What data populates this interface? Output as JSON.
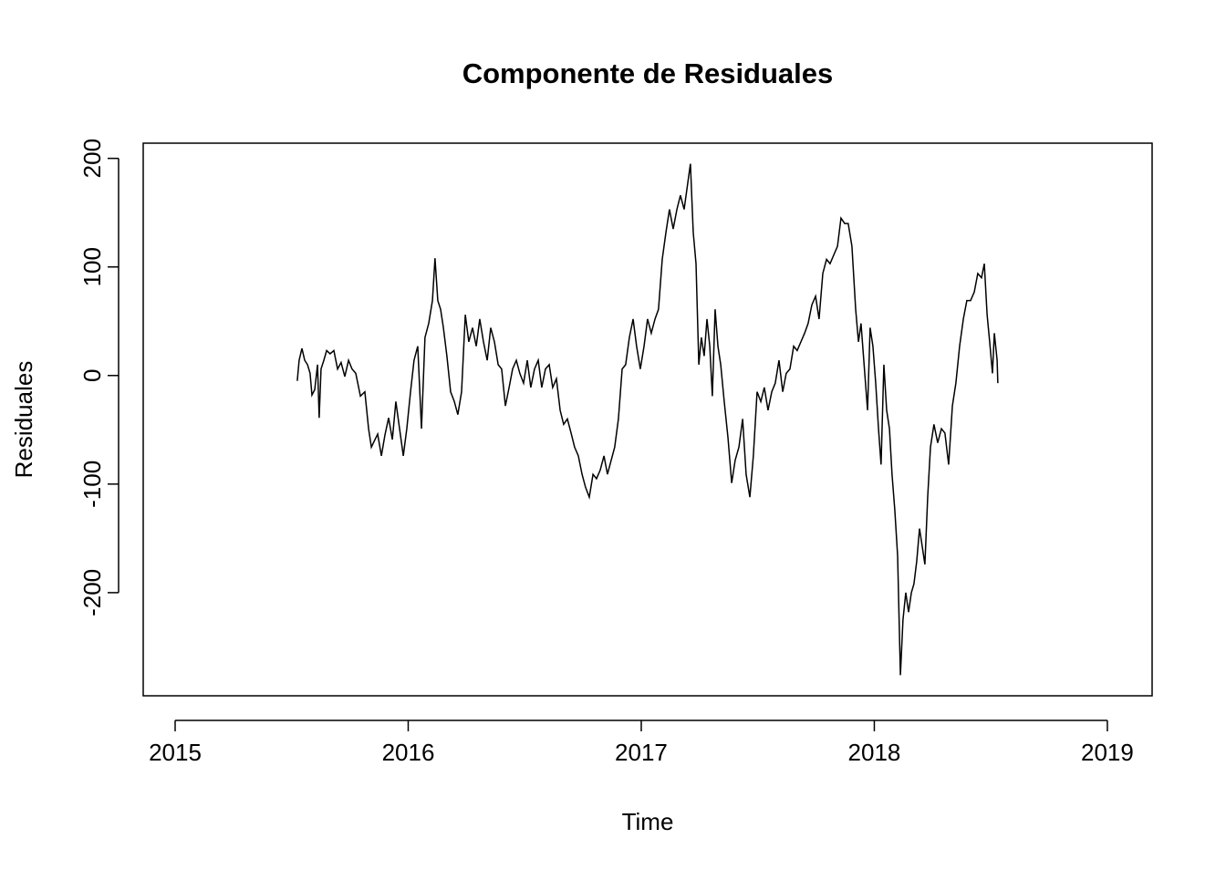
{
  "chart_data": {
    "type": "line",
    "title": "Componente de Residuales",
    "x_label": "Time",
    "y_label": "Residuales",
    "x": [
      2015.524,
      2015.532,
      2015.544,
      2015.556,
      2015.568,
      2015.579,
      2015.587,
      2015.599,
      2015.611,
      2015.618,
      2015.626,
      2015.638,
      2015.65,
      2015.665,
      2015.681,
      2015.697,
      2015.712,
      2015.728,
      2015.744,
      2015.759,
      2015.775,
      2015.795,
      2015.814,
      2015.83,
      2015.842,
      2015.853,
      2015.869,
      2015.885,
      2015.9,
      2015.916,
      2015.932,
      2015.947,
      2015.963,
      2015.979,
      2015.994,
      2016.01,
      2016.025,
      2016.041,
      2016.057,
      2016.072,
      2016.088,
      2016.104,
      2016.115,
      2016.127,
      2016.139,
      2016.151,
      2016.166,
      2016.182,
      2016.198,
      2016.213,
      2016.229,
      2016.245,
      2016.26,
      2016.276,
      2016.292,
      2016.307,
      2016.323,
      2016.339,
      2016.354,
      2016.37,
      2016.386,
      2016.401,
      2016.417,
      2016.433,
      2016.448,
      2016.464,
      2016.479,
      2016.495,
      2016.511,
      2016.526,
      2016.542,
      2016.558,
      2016.573,
      2016.589,
      2016.605,
      2016.62,
      2016.636,
      2016.652,
      2016.667,
      2016.683,
      2016.699,
      2016.714,
      2016.73,
      2016.746,
      2016.761,
      2016.777,
      2016.793,
      2016.808,
      2016.824,
      2016.84,
      2016.855,
      2016.871,
      2016.886,
      2016.902,
      2016.918,
      2016.933,
      2016.949,
      2016.965,
      2016.98,
      2016.996,
      2017.012,
      2017.027,
      2017.043,
      2017.059,
      2017.074,
      2017.09,
      2017.106,
      2017.121,
      2017.137,
      2017.153,
      2017.168,
      2017.184,
      2017.2,
      2017.211,
      2017.223,
      2017.235,
      2017.247,
      2017.258,
      2017.27,
      2017.282,
      2017.294,
      2017.305,
      2017.317,
      2017.329,
      2017.341,
      2017.356,
      2017.372,
      2017.388,
      2017.403,
      2017.419,
      2017.435,
      2017.45,
      2017.466,
      2017.481,
      2017.497,
      2017.513,
      2017.528,
      2017.544,
      2017.56,
      2017.575,
      2017.591,
      2017.607,
      2017.622,
      2017.638,
      2017.654,
      2017.669,
      2017.685,
      2017.701,
      2017.716,
      2017.732,
      2017.748,
      2017.763,
      2017.779,
      2017.795,
      2017.81,
      2017.826,
      2017.842,
      2017.857,
      2017.873,
      2017.888,
      2017.904,
      2017.92,
      2017.932,
      2017.943,
      2017.959,
      2017.971,
      2017.982,
      2017.994,
      2018.006,
      2018.018,
      2018.029,
      2018.041,
      2018.053,
      2018.065,
      2018.076,
      2018.088,
      2018.1,
      2018.112,
      2018.123,
      2018.135,
      2018.147,
      2018.159,
      2018.17,
      2018.182,
      2018.194,
      2018.206,
      2018.217,
      2018.229,
      2018.241,
      2018.256,
      2018.272,
      2018.288,
      2018.303,
      2018.319,
      2018.335,
      2018.35,
      2018.366,
      2018.382,
      2018.397,
      2018.413,
      2018.429,
      2018.444,
      2018.46,
      2018.472,
      2018.484,
      2018.495,
      2018.507,
      2018.515,
      2018.527,
      2018.53
    ],
    "series": [
      {
        "name": "Residuales",
        "color": "#000000",
        "values": [
          -5,
          14,
          25,
          14,
          10,
          2,
          -18,
          -13,
          10,
          -39,
          6,
          14,
          23,
          20,
          23,
          6,
          12,
          -1,
          14,
          6,
          2,
          -19,
          -15,
          -49,
          -66,
          -61,
          -54,
          -74,
          -55,
          -39,
          -59,
          -24,
          -49,
          -74,
          -49,
          -15,
          14,
          27,
          -49,
          35,
          48,
          69,
          108,
          69,
          61,
          44,
          18,
          -15,
          -24,
          -36,
          -15,
          56,
          31,
          44,
          27,
          52,
          31,
          14,
          44,
          31,
          10,
          6,
          -28,
          -11,
          6,
          14,
          2,
          -7,
          14,
          -11,
          6,
          14,
          -11,
          6,
          10,
          -11,
          -3,
          -32,
          -45,
          -40,
          -53,
          -66,
          -74,
          -91,
          -103,
          -112,
          -91,
          -95,
          -87,
          -74,
          -91,
          -78,
          -66,
          -40,
          6,
          10,
          35,
          52,
          27,
          6,
          27,
          52,
          39,
          52,
          61,
          107,
          132,
          153,
          135,
          153,
          166,
          153,
          178,
          195,
          132,
          103,
          10,
          35,
          18,
          52,
          27,
          -19,
          61,
          27,
          10,
          -24,
          -57,
          -99,
          -78,
          -66,
          -40,
          -91,
          -112,
          -74,
          -15,
          -24,
          -11,
          -32,
          -15,
          -7,
          14,
          -15,
          2,
          6,
          27,
          23,
          31,
          39,
          48,
          65,
          73,
          52,
          94,
          107,
          103,
          111,
          119,
          145,
          140,
          140,
          119,
          61,
          31,
          48,
          2,
          -32,
          44,
          27,
          -7,
          -49,
          -82,
          10,
          -32,
          -49,
          -91,
          -124,
          -166,
          -276,
          -225,
          -200,
          -218,
          -200,
          -192,
          -171,
          -141,
          -158,
          -174,
          -112,
          -66,
          -45,
          -62,
          -49,
          -53,
          -82,
          -28,
          -7,
          27,
          52,
          69,
          69,
          77,
          94,
          90,
          103,
          56,
          31,
          2,
          39,
          14,
          -7
        ]
      }
    ],
    "xlim": [
      2014.863,
      2019.192
    ],
    "xticks": [
      2015,
      2016,
      2017,
      2018,
      2019
    ],
    "ylim": [
      -295,
      214
    ],
    "yticks": [
      -200,
      -100,
      0,
      100,
      200
    ]
  }
}
